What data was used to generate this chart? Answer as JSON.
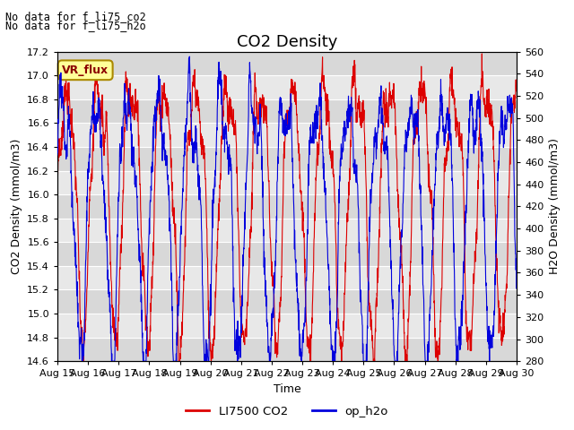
{
  "title": "CO2 Density",
  "xlabel": "Time",
  "ylabel_left": "CO2 Density (mmol/m3)",
  "ylabel_right": "H2O Density (mmol/m3)",
  "ylim_left": [
    14.6,
    17.2
  ],
  "ylim_right": [
    280,
    560
  ],
  "yticks_left": [
    14.6,
    14.8,
    15.0,
    15.2,
    15.4,
    15.6,
    15.8,
    16.0,
    16.2,
    16.4,
    16.6,
    16.8,
    17.0,
    17.2
  ],
  "yticks_right": [
    280,
    300,
    320,
    340,
    360,
    380,
    400,
    420,
    440,
    460,
    480,
    500,
    520,
    540,
    560
  ],
  "xtick_labels": [
    "Aug 15",
    "Aug 16",
    "Aug 17",
    "Aug 18",
    "Aug 19",
    "Aug 20",
    "Aug 21",
    "Aug 22",
    "Aug 23",
    "Aug 24",
    "Aug 25",
    "Aug 26",
    "Aug 27",
    "Aug 28",
    "Aug 29",
    "Aug 30"
  ],
  "annotation_line1": "No data for f_li75_co2",
  "annotation_line2": "No data for f_li75_h2o",
  "legend_label1": "LI7500 CO2",
  "legend_label2": "op_h2o",
  "color_red": "#dd0000",
  "color_blue": "#0000dd",
  "box_label": "VR_flux",
  "box_facecolor": "#ffff99",
  "box_edgecolor": "#aa8800",
  "plot_bg_color": "#e8e8e8",
  "band_color1": "#e8e8e8",
  "band_color2": "#d8d8d8",
  "title_fontsize": 13,
  "label_fontsize": 9,
  "tick_fontsize": 8,
  "annotation_fontsize": 8.5,
  "n_points": 2000
}
